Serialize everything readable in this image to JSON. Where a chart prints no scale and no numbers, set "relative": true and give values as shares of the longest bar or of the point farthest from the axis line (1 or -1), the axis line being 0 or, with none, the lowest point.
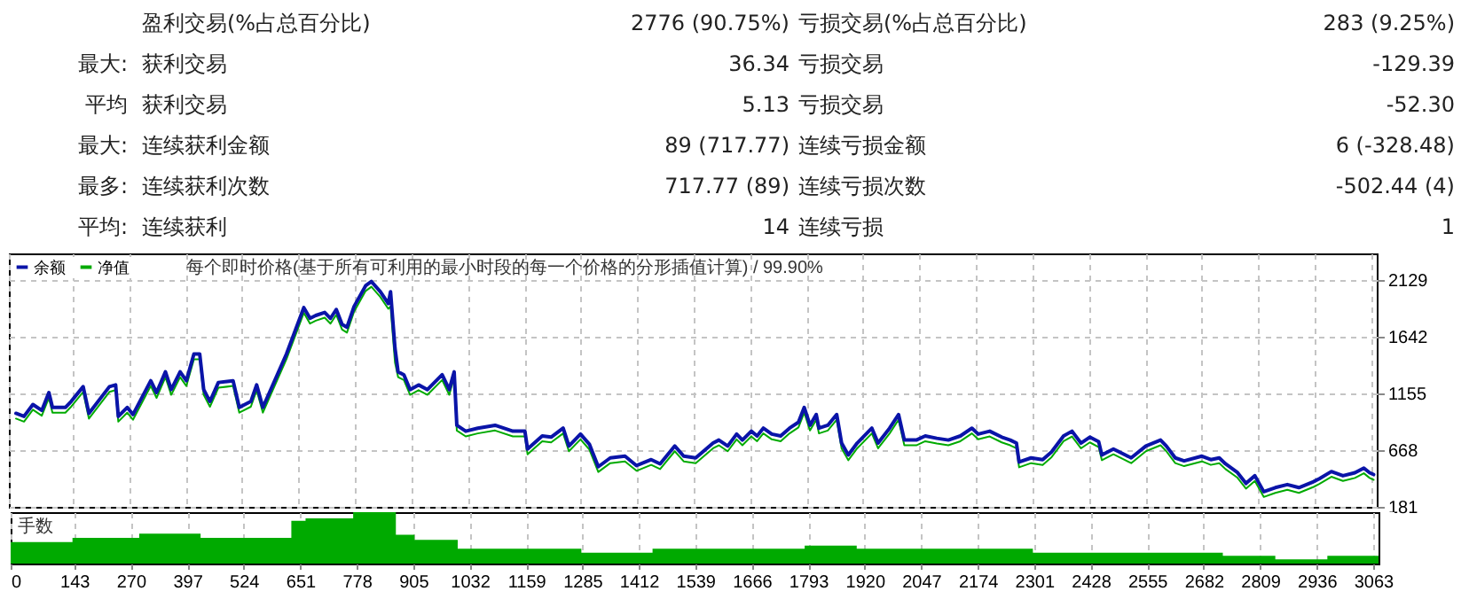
{
  "chart_data": [
    {
      "type": "other",
      "annotations": [
        "盈利交易(%占总百分比)",
        "2776 (90.75%)",
        "亏损交易(%占总百分比)",
        "283 (9.25%)",
        "最大:",
        "获利交易",
        "36.34",
        "亏损交易",
        "-129.39",
        "平均",
        "获利交易",
        "5.13",
        "亏损交易",
        "-52.30",
        "最大:",
        "连续获利金额",
        "89 (717.77)",
        "连续亏损金额",
        "6 (-328.48)",
        "最多:",
        "连续获利次数",
        "717.77 (89)",
        "连续亏损次数",
        "-502.44 (4)",
        "平均:",
        "连续获利",
        "14",
        "连续亏损",
        "1"
      ]
    },
    {
      "type": "line",
      "title": "每个即时价格(基于所有可利用的最小时段的每一个价格的分形插值计算) / 99.90%",
      "legend": "top left",
      "grid": true,
      "tick_labels": "y",
      "xlim": [
        0,
        3075
      ],
      "xticks": [
        0,
        143,
        270,
        397,
        524,
        651,
        778,
        905,
        1032,
        1159,
        1285,
        1412,
        1539,
        1666,
        1793,
        1920,
        2047,
        2174,
        2301,
        2428,
        2555,
        2682,
        2809,
        2936,
        3063
      ],
      "ylim": [
        181,
        2355
      ],
      "yticks": [
        181,
        668,
        1155,
        1642,
        2129
      ],
      "x": [
        16,
        34,
        54,
        74,
        90,
        98,
        127,
        140,
        167,
        180,
        226,
        240,
        246,
        266,
        279,
        319,
        332,
        352,
        365,
        385,
        399,
        416,
        429,
        438,
        452,
        471,
        504,
        518,
        544,
        557,
        571,
        624,
        663,
        677,
        690,
        710,
        723,
        736,
        749,
        760,
        776,
        802,
        815,
        835,
        853,
        858,
        868,
        875,
        888,
        902,
        921,
        941,
        974,
        990,
        1001,
        1007,
        1027,
        1054,
        1093,
        1133,
        1160,
        1166,
        1199,
        1219,
        1246,
        1259,
        1285,
        1305,
        1325,
        1352,
        1385,
        1411,
        1444,
        1464,
        1497,
        1517,
        1544,
        1583,
        1596,
        1616,
        1636,
        1649,
        1669,
        1682,
        1696,
        1715,
        1735,
        1755,
        1775,
        1788,
        1801,
        1815,
        1821,
        1841,
        1861,
        1872,
        1887,
        1907,
        1940,
        1954,
        1980,
        2000,
        2013,
        2040,
        2060,
        2086,
        2112,
        2139,
        2165,
        2179,
        2205,
        2232,
        2251,
        2265,
        2271,
        2298,
        2324,
        2344,
        2371,
        2390,
        2410,
        2430,
        2450,
        2457,
        2483,
        2510,
        2523,
        2556,
        2589,
        2602,
        2622,
        2642,
        2682,
        2702,
        2721,
        2735,
        2761,
        2781,
        2801,
        2821,
        2847,
        2874,
        2900,
        2933,
        2946,
        2973,
        2999,
        3026,
        3046,
        3059,
        3068
      ],
      "series": [
        {
          "name": "余额",
          "color": "#0a14a8",
          "values": [
            983,
            957,
            1059,
            1008,
            1161,
            1034,
            1034,
            1085,
            1212,
            983,
            1212,
            1227,
            957,
            1034,
            973,
            1263,
            1161,
            1339,
            1187,
            1339,
            1263,
            1492,
            1492,
            1187,
            1085,
            1248,
            1263,
            1034,
            1085,
            1227,
            1034,
            1492,
            1890,
            1798,
            1823,
            1849,
            1798,
            1874,
            1747,
            1721,
            1900,
            2078,
            2114,
            2027,
            1925,
            2027,
            1543,
            1339,
            1314,
            1187,
            1227,
            1187,
            1314,
            1187,
            1339,
            881,
            830,
            856,
            881,
            830,
            830,
            677,
            789,
            779,
            856,
            703,
            805,
            718,
            525,
            601,
            616,
            535,
            586,
            550,
            703,
            616,
            601,
            728,
            754,
            703,
            805,
            754,
            830,
            789,
            856,
            805,
            789,
            856,
            907,
            1034,
            881,
            973,
            856,
            881,
            973,
            728,
            626,
            728,
            856,
            728,
            856,
            973,
            754,
            754,
            789,
            769,
            754,
            789,
            856,
            805,
            830,
            779,
            754,
            728,
            565,
            601,
            586,
            652,
            789,
            830,
            728,
            779,
            739,
            626,
            677,
            626,
            601,
            703,
            754,
            703,
            601,
            575,
            616,
            586,
            601,
            550,
            479,
            382,
            448,
            311,
            346,
            372,
            346,
            397,
            423,
            484,
            448,
            474,
            514,
            474,
            458
          ]
        },
        {
          "name": "净值",
          "color": "#00aa00",
          "values": [
            938,
            912,
            1014,
            963,
            1116,
            989,
            989,
            1040,
            1167,
            938,
            1167,
            1182,
            912,
            989,
            928,
            1218,
            1116,
            1294,
            1142,
            1294,
            1218,
            1447,
            1447,
            1142,
            1040,
            1203,
            1218,
            989,
            1040,
            1182,
            989,
            1447,
            1845,
            1753,
            1778,
            1804,
            1753,
            1829,
            1702,
            1676,
            1855,
            2033,
            2069,
            1982,
            1880,
            1900,
            1420,
            1294,
            1269,
            1142,
            1182,
            1142,
            1269,
            1142,
            1294,
            836,
            785,
            811,
            836,
            785,
            785,
            632,
            744,
            734,
            811,
            658,
            760,
            673,
            480,
            556,
            571,
            490,
            541,
            505,
            658,
            571,
            556,
            683,
            709,
            658,
            760,
            709,
            785,
            744,
            811,
            760,
            744,
            811,
            862,
            989,
            836,
            928,
            811,
            836,
            928,
            683,
            581,
            683,
            811,
            683,
            811,
            928,
            709,
            709,
            744,
            724,
            709,
            744,
            811,
            760,
            785,
            734,
            709,
            683,
            520,
            556,
            541,
            607,
            744,
            785,
            683,
            734,
            694,
            581,
            632,
            581,
            556,
            658,
            709,
            658,
            556,
            530,
            571,
            541,
            556,
            505,
            434,
            337,
            403,
            266,
            301,
            327,
            301,
            352,
            378,
            439,
            403,
            429,
            469,
            429,
            413
          ]
        }
      ]
    },
    {
      "type": "area",
      "title": "手数",
      "relative": true,
      "grid": "x",
      "tick_labels": "x",
      "xlim": [
        0,
        3075
      ],
      "xticks": [
        0,
        143,
        270,
        397,
        524,
        651,
        778,
        905,
        1032,
        1159,
        1285,
        1412,
        1539,
        1666,
        1793,
        1920,
        2047,
        2174,
        2301,
        2428,
        2555,
        2682,
        2809,
        2936,
        3063
      ],
      "x": [
        0,
        139,
        289,
        427,
        631,
        663,
        770,
        866,
        908,
        1005,
        1283,
        1443,
        1785,
        1902,
        2298,
        2725,
        2843,
        2960,
        3075
      ],
      "series": [
        {
          "color": "#00aa00",
          "values": [
            0.42,
            0.5,
            0.58,
            0.5,
            0.83,
            0.88,
            1,
            0.56,
            0.46,
            0.29,
            0.21,
            0.29,
            0.35,
            0.29,
            0.21,
            0.15,
            0.08,
            0.15,
            0.15
          ]
        }
      ]
    }
  ]
}
